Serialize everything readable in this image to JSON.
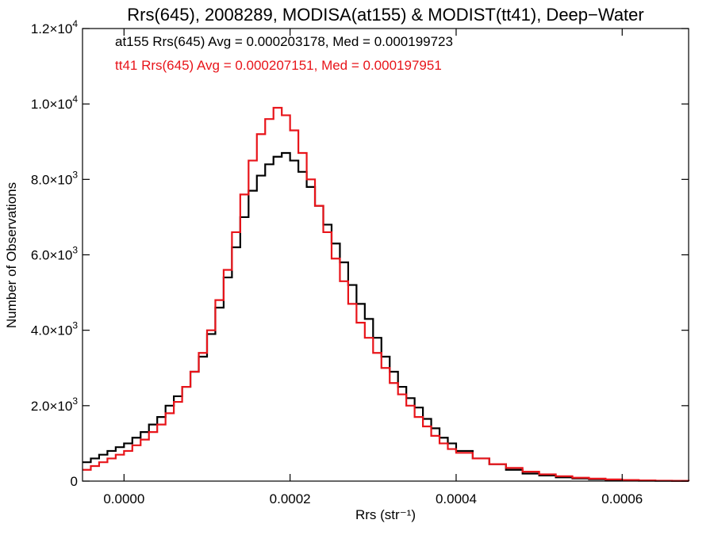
{
  "chart_data": {
    "type": "line",
    "title": "Rrs(645), 2008289, MODISA(at155) & MODIST(tt41), Deep−Water",
    "xlabel": "Rrs (str⁻¹)",
    "ylabel": "Number of Observations",
    "xlim": [
      -5e-05,
      0.00068
    ],
    "ylim": [
      0,
      12000
    ],
    "grid": false,
    "step": true,
    "x_ticks": [
      {
        "value": 0.0,
        "label": "0.0000"
      },
      {
        "value": 0.0002,
        "label": "0.0002"
      },
      {
        "value": 0.0004,
        "label": "0.0004"
      },
      {
        "value": 0.0006,
        "label": "0.0006"
      }
    ],
    "y_ticks": [
      {
        "value": 0,
        "mant": "0",
        "exp": ""
      },
      {
        "value": 2000,
        "mant": "2.0×10",
        "exp": "3"
      },
      {
        "value": 4000,
        "mant": "4.0×10",
        "exp": "3"
      },
      {
        "value": 6000,
        "mant": "6.0×10",
        "exp": "3"
      },
      {
        "value": 8000,
        "mant": "8.0×10",
        "exp": "3"
      },
      {
        "value": 10000,
        "mant": "1.0×10",
        "exp": "4"
      },
      {
        "value": 12000,
        "mant": "1.2×10",
        "exp": "4"
      }
    ],
    "annotations": [
      {
        "text": "at155 Rrs(645) Avg = 0.000203178, Med = 0.000199723",
        "color": "#000000"
      },
      {
        "text": "tt41 Rrs(645) Avg = 0.000207151, Med = 0.000197951",
        "color": "#e8141a"
      }
    ],
    "series": [
      {
        "color": "#000000",
        "x": [
          -5e-05,
          -4e-05,
          -3e-05,
          -2e-05,
          -1e-05,
          0.0,
          1e-05,
          2e-05,
          3e-05,
          4e-05,
          5e-05,
          6e-05,
          7e-05,
          8e-05,
          9e-05,
          0.0001,
          0.00011,
          0.00012,
          0.00013,
          0.00014,
          0.00015,
          0.00016,
          0.00017,
          0.00018,
          0.00019,
          0.0002,
          0.00021,
          0.00022,
          0.00023,
          0.00024,
          0.00025,
          0.00026,
          0.00027,
          0.00028,
          0.00029,
          0.0003,
          0.00031,
          0.00032,
          0.00033,
          0.00034,
          0.00035,
          0.00036,
          0.00037,
          0.00038,
          0.00039,
          0.0004,
          0.00042,
          0.00044,
          0.00046,
          0.00048,
          0.0005,
          0.00052,
          0.00054,
          0.00056,
          0.00058,
          0.0006,
          0.00062,
          0.00064,
          0.00066,
          0.00068
        ],
        "y": [
          500,
          600,
          700,
          800,
          900,
          1000,
          1150,
          1300,
          1500,
          1700,
          2000,
          2250,
          2500,
          2900,
          3300,
          3900,
          4600,
          5400,
          6200,
          7000,
          7700,
          8100,
          8400,
          8600,
          8700,
          8500,
          8200,
          7800,
          7300,
          6800,
          6300,
          5800,
          5200,
          4700,
          4300,
          3800,
          3300,
          2900,
          2500,
          2200,
          1950,
          1650,
          1400,
          1150,
          1000,
          800,
          600,
          450,
          300,
          200,
          150,
          100,
          70,
          50,
          30,
          20,
          10,
          8,
          5,
          3
        ]
      },
      {
        "color": "#e8141a",
        "x": [
          -5e-05,
          -4e-05,
          -3e-05,
          -2e-05,
          -1e-05,
          0.0,
          1e-05,
          2e-05,
          3e-05,
          4e-05,
          5e-05,
          6e-05,
          7e-05,
          8e-05,
          9e-05,
          0.0001,
          0.00011,
          0.00012,
          0.00013,
          0.00014,
          0.00015,
          0.00016,
          0.00017,
          0.00018,
          0.00019,
          0.0002,
          0.00021,
          0.00022,
          0.00023,
          0.00024,
          0.00025,
          0.00026,
          0.00027,
          0.00028,
          0.00029,
          0.0003,
          0.00031,
          0.00032,
          0.00033,
          0.00034,
          0.00035,
          0.00036,
          0.00037,
          0.00038,
          0.00039,
          0.0004,
          0.00042,
          0.00044,
          0.00046,
          0.00048,
          0.0005,
          0.00052,
          0.00054,
          0.00056,
          0.00058,
          0.0006,
          0.00062,
          0.00064,
          0.00066,
          0.00068
        ],
        "y": [
          300,
          400,
          500,
          600,
          700,
          800,
          950,
          1100,
          1300,
          1500,
          1800,
          2100,
          2500,
          2900,
          3400,
          4000,
          4800,
          5600,
          6600,
          7600,
          8500,
          9200,
          9600,
          9900,
          9700,
          9300,
          8700,
          8000,
          7300,
          6600,
          5900,
          5300,
          4700,
          4200,
          3800,
          3400,
          3000,
          2600,
          2300,
          2000,
          1700,
          1450,
          1200,
          1000,
          850,
          750,
          600,
          450,
          350,
          250,
          180,
          130,
          90,
          65,
          45,
          30,
          20,
          12,
          8,
          5
        ]
      }
    ]
  }
}
